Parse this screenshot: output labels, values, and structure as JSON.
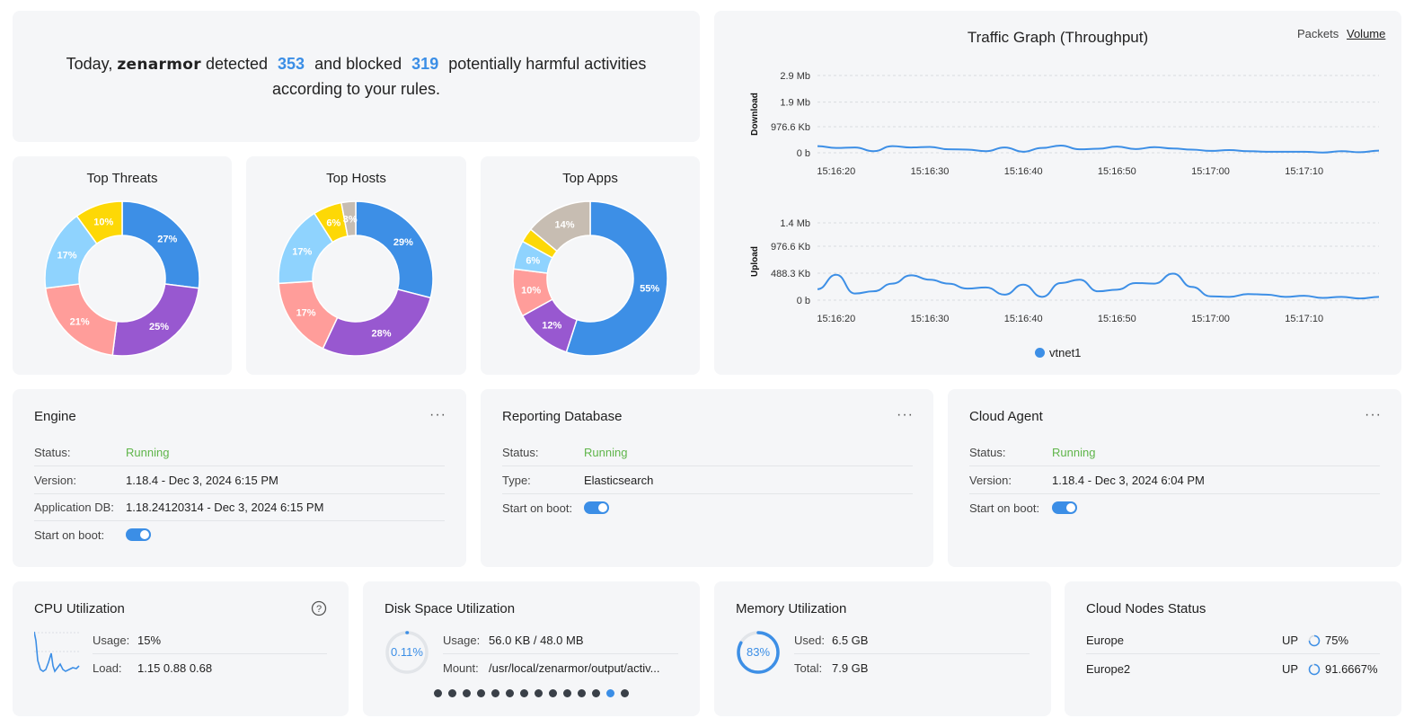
{
  "summary": {
    "prefix": "Today,",
    "brand": "zenarmor",
    "detected_label": "detected",
    "detected": "353",
    "blocked_label": "and blocked",
    "blocked": "319",
    "suffix_1": "potentially harmful activities",
    "suffix_2": "according to your rules."
  },
  "donuts": [
    {
      "title": "Top Threats",
      "slices": [
        {
          "pct": 27,
          "label": "27%",
          "color": "#3d8fe6"
        },
        {
          "pct": 25,
          "label": "25%",
          "color": "#9858d0"
        },
        {
          "pct": 21,
          "label": "21%",
          "color": "#ff9d9a"
        },
        {
          "pct": 17,
          "label": "17%",
          "color": "#8fd3fe"
        },
        {
          "pct": 10,
          "label": "10%",
          "color": "#fdd806"
        }
      ]
    },
    {
      "title": "Top Hosts",
      "slices": [
        {
          "pct": 29,
          "label": "29%",
          "color": "#3d8fe6"
        },
        {
          "pct": 28,
          "label": "28%",
          "color": "#9858d0"
        },
        {
          "pct": 17,
          "label": "17%",
          "color": "#ff9d9a"
        },
        {
          "pct": 17,
          "label": "17%",
          "color": "#8fd3fe"
        },
        {
          "pct": 6,
          "label": "6%",
          "color": "#fdd806"
        },
        {
          "pct": 3,
          "label": "3%",
          "color": "#c7bdb2"
        }
      ]
    },
    {
      "title": "Top Apps",
      "slices": [
        {
          "pct": 55,
          "label": "55%",
          "color": "#3d8fe6"
        },
        {
          "pct": 12,
          "label": "12%",
          "color": "#9858d0"
        },
        {
          "pct": 10,
          "label": "10%",
          "color": "#ff9d9a"
        },
        {
          "pct": 6,
          "label": "6%",
          "color": "#8fd3fe"
        },
        {
          "pct": 3,
          "label": "",
          "color": "#fdd806"
        },
        {
          "pct": 14,
          "label": "14%",
          "color": "#c7bdb2"
        }
      ]
    }
  ],
  "traffic": {
    "title": "Traffic Graph (Throughput)",
    "tabs": [
      "Packets",
      "Volume"
    ],
    "active_tab": "Volume",
    "legend": "vtnet1",
    "color": "#3d8fe6"
  },
  "chart_data": [
    {
      "type": "line",
      "title": "Traffic Graph (Throughput)",
      "ylabel": "Download",
      "unit": "Kb",
      "yticks": [
        "2.9 Mb",
        "1.9 Mb",
        "976.6 Kb",
        "0 b"
      ],
      "ytick_values": [
        2900,
        1900,
        976.6,
        0
      ],
      "xticks": [
        "15:16:20",
        "15:16:30",
        "15:16:40",
        "15:16:50",
        "15:17:00",
        "15:17:10"
      ],
      "xtick_values": [
        2,
        12,
        22,
        32,
        42,
        52
      ],
      "x_range": [
        0,
        60
      ],
      "series": [
        {
          "name": "vtnet1",
          "x": [
            0,
            2,
            4,
            6,
            8,
            10,
            12,
            14,
            16,
            18,
            20,
            22,
            24,
            26,
            28,
            30,
            32,
            34,
            36,
            38,
            40,
            42,
            44,
            46,
            48,
            50,
            52,
            54,
            56,
            58,
            60
          ],
          "values": [
            250,
            180,
            200,
            60,
            250,
            200,
            220,
            130,
            120,
            60,
            200,
            40,
            180,
            270,
            130,
            150,
            230,
            140,
            210,
            160,
            120,
            70,
            100,
            60,
            40,
            40,
            40,
            10,
            60,
            20,
            80
          ]
        }
      ]
    },
    {
      "type": "line",
      "ylabel": "Upload",
      "unit": "Kb",
      "yticks": [
        "1.4 Mb",
        "976.6 Kb",
        "488.3 Kb",
        "0 b"
      ],
      "ytick_values": [
        1400,
        976.6,
        488.3,
        0
      ],
      "xticks": [
        "15:16:20",
        "15:16:30",
        "15:16:40",
        "15:16:50",
        "15:17:00",
        "15:17:10"
      ],
      "xtick_values": [
        2,
        12,
        22,
        32,
        42,
        52
      ],
      "x_range": [
        0,
        60
      ],
      "series": [
        {
          "name": "vtnet1",
          "x": [
            0,
            2,
            4,
            6,
            8,
            10,
            12,
            14,
            16,
            18,
            20,
            22,
            24,
            26,
            28,
            30,
            32,
            34,
            36,
            38,
            40,
            42,
            44,
            46,
            48,
            50,
            52,
            54,
            56,
            58,
            60
          ],
          "values": [
            200,
            460,
            120,
            160,
            300,
            450,
            370,
            300,
            210,
            230,
            100,
            280,
            60,
            310,
            370,
            160,
            190,
            310,
            300,
            480,
            240,
            70,
            60,
            110,
            100,
            60,
            80,
            40,
            60,
            30,
            60
          ]
        }
      ]
    }
  ],
  "engine": {
    "title": "Engine",
    "more": "···",
    "status_label": "Status:",
    "status": "Running",
    "version_label": "Version:",
    "version": "1.18.4 - Dec 3, 2024 6:15 PM",
    "appdb_label": "Application DB:",
    "appdb": "1.18.24120314 - Dec 3, 2024 6:15 PM",
    "boot_label": "Start on boot:"
  },
  "reporting": {
    "title": "Reporting Database",
    "more": "···",
    "status_label": "Status:",
    "status": "Running",
    "type_label": "Type:",
    "type": "Elasticsearch",
    "boot_label": "Start on boot:"
  },
  "cloud_agent": {
    "title": "Cloud Agent",
    "more": "···",
    "status_label": "Status:",
    "status": "Running",
    "version_label": "Version:",
    "version": "1.18.4 - Dec 3, 2024 6:04 PM",
    "boot_label": "Start on boot:"
  },
  "cpu": {
    "title": "CPU Utilization",
    "usage_label": "Usage:",
    "usage": "15%",
    "load_label": "Load:",
    "load": "1.15 0.88 0.68",
    "usage_value": 15
  },
  "disk": {
    "title": "Disk Space Utilization",
    "gauge_label": "0.11%",
    "gauge_value": 0.11,
    "usage_label": "Usage:",
    "usage": "56.0 KB / 48.0 MB",
    "mount_label": "Mount:",
    "mount": "/usr/local/zenarmor/output/activ...",
    "pager_count": 14,
    "pager_active": 13
  },
  "memory": {
    "title": "Memory Utilization",
    "gauge_label": "83%",
    "gauge_value": 83,
    "used_label": "Used:",
    "used": "6.5 GB",
    "total_label": "Total:",
    "total": "7.9 GB"
  },
  "cloud_nodes": {
    "title": "Cloud Nodes Status",
    "nodes": [
      {
        "name": "Europe",
        "status": "UP",
        "value": "75%",
        "pct": 75
      },
      {
        "name": "Europe2",
        "status": "UP",
        "value": "91.6667%",
        "pct": 91.6667
      }
    ]
  }
}
